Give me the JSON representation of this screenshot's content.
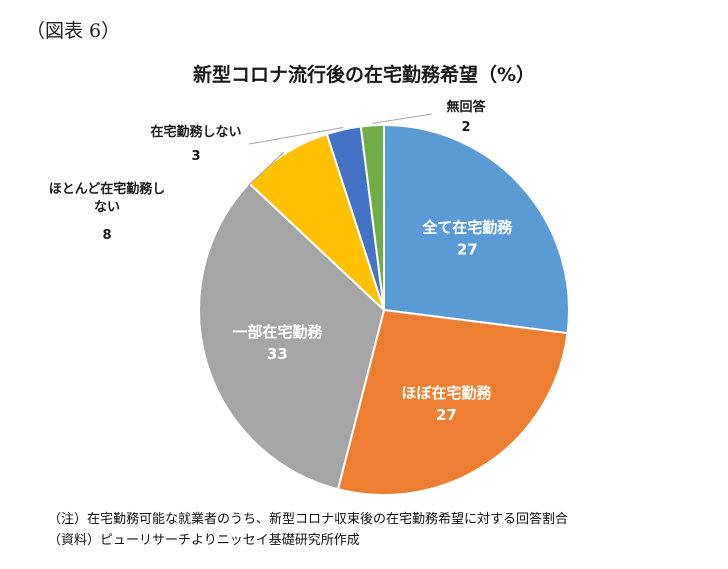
{
  "figure_label": "（図表 6）",
  "chart_data": {
    "type": "pie",
    "title": "新型コロナ流行後の在宅勤務希望（%）",
    "slices": [
      {
        "label": "全て在宅勤務",
        "value": 27,
        "color": "#5b9bd5",
        "label_position": "inside"
      },
      {
        "label": "ほぼ在宅勤務",
        "value": 27,
        "color": "#ed7d31",
        "label_position": "inside"
      },
      {
        "label": "一部在宅勤務",
        "value": 33,
        "color": "#a5a5a5",
        "label_position": "inside"
      },
      {
        "label": "ほとんど在宅勤務しない",
        "value": 8,
        "color": "#ffc000",
        "label_position": "outside"
      },
      {
        "label": "在宅勤務しない",
        "value": 3,
        "color": "#4472c4",
        "label_position": "outside"
      },
      {
        "label": "無回答",
        "value": 2,
        "color": "#70ad47",
        "label_position": "outside"
      }
    ],
    "start": "12 o'clock",
    "direction": "clockwise",
    "legend": "none"
  },
  "notes": [
    "（注）在宅勤務可能な就業者のうち、新型コロナ収束後の在宅勤務希望に対する回答割合",
    "（資料）ピューリサーチよりニッセイ基礎研究所作成"
  ]
}
